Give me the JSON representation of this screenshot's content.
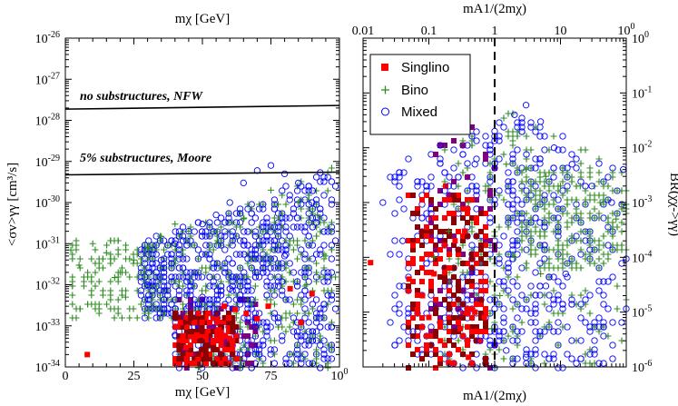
{
  "chart_data": [
    {
      "type": "scatter",
      "panel": "left",
      "title_top": "mχ [GeV]",
      "xlabel": "mχ [GeV]",
      "ylabel": "<σv>γγ [cm³/s]",
      "xlim": [
        0,
        100
      ],
      "ylim_log10": [
        -34,
        -26
      ],
      "x_ticks": [
        "0",
        "25",
        "50",
        "75",
        "100"
      ],
      "y_ticks": [
        "10-34",
        "10-33",
        "10-32",
        "10-31",
        "10-30",
        "10-29",
        "10-28",
        "10-27",
        "10-26"
      ],
      "reference_lines": [
        {
          "label": "no substructures, NFW",
          "y": 2.3e-28
        },
        {
          "label": "5% substructures, Moore",
          "y": 5.5e-30
        }
      ],
      "series": [
        {
          "name": "Singlino",
          "marker": "filled-square",
          "color": "#ff0000",
          "points": [
            [
              8,
              2e-34
            ],
            [
              42,
              1.2e-33
            ],
            [
              48,
              6e-34
            ],
            [
              52,
              2e-33
            ],
            [
              54,
              4e-34
            ],
            [
              56,
              8e-34
            ],
            [
              58,
              3e-33
            ],
            [
              62,
              2.5e-33
            ],
            [
              66,
              2e-33
            ],
            [
              70,
              1.5e-33
            ],
            [
              74,
              3e-33
            ],
            [
              82,
              8e-33
            ],
            [
              86,
              1.2e-33
            ],
            [
              90,
              6e-33
            ],
            [
              44,
              3e-34
            ],
            [
              60,
              5e-34
            ]
          ]
        },
        {
          "name": "Bino",
          "marker": "plus",
          "color": "#2e8b22",
          "points": [
            [
              2,
              7e-32
            ],
            [
              5,
              3e-32
            ],
            [
              10,
              1e-31
            ],
            [
              15,
              6e-32
            ],
            [
              20,
              2e-32
            ],
            [
              25,
              4e-32
            ],
            [
              30,
              8e-32
            ],
            [
              35,
              1.5e-31
            ],
            [
              40,
              3e-31
            ],
            [
              45,
              2e-31
            ],
            [
              55,
              1e-31
            ],
            [
              65,
              4e-31
            ],
            [
              75,
              2e-30
            ],
            [
              85,
              1e-30
            ],
            [
              92,
              5e-31
            ],
            [
              97,
              2e-31
            ],
            [
              95,
              5e-32
            ],
            [
              88,
              1e-32
            ],
            [
              22,
              5e-33
            ],
            [
              18,
              1.5e-32
            ]
          ]
        },
        {
          "name": "Mixed",
          "marker": "open-circle",
          "color": "#0000ff",
          "points": [
            [
              30,
              1e-32
            ],
            [
              35,
              4e-32
            ],
            [
              40,
              1e-31
            ],
            [
              45,
              2e-31
            ],
            [
              50,
              3e-31
            ],
            [
              55,
              5e-31
            ],
            [
              60,
              1e-30
            ],
            [
              65,
              3e-30
            ],
            [
              70,
              6e-30
            ],
            [
              75,
              8e-30
            ],
            [
              80,
              5e-30
            ],
            [
              85,
              3e-30
            ],
            [
              90,
              1e-30
            ],
            [
              45,
              3e-33
            ],
            [
              50,
              5e-33
            ],
            [
              55,
              2e-33
            ],
            [
              60,
              8e-33
            ],
            [
              70,
              2e-32
            ],
            [
              80,
              5e-32
            ],
            [
              40,
              6e-34
            ]
          ]
        }
      ]
    },
    {
      "type": "scatter",
      "panel": "right",
      "title_top": "mA1/(2mχ)",
      "xlabel": "mA1/(2mχ)",
      "ylabel": "BR(χχ->γγ)",
      "xlim_log10": [
        -2,
        2
      ],
      "ylim_log10": [
        -6,
        0
      ],
      "x_ticks": [
        "0.01",
        "0.1",
        "1",
        "10",
        "100"
      ],
      "y_ticks": [
        "10-6",
        "10-5",
        "10-4",
        "10-3",
        "10-2",
        "10-1",
        "10⁰"
      ],
      "reference_lines": [
        {
          "orientation": "vertical",
          "x": 1,
          "style": "dashed"
        }
      ],
      "legend": {
        "position": "top-left",
        "entries": [
          "Singlino",
          "Bino",
          "Mixed"
        ]
      },
      "series": [
        {
          "name": "Singlino",
          "marker": "filled-square",
          "color": "#ff0000",
          "points": [
            [
              0.013,
              8e-05
            ],
            [
              0.05,
              4e-05
            ],
            [
              0.08,
              2e-05
            ],
            [
              0.1,
              8e-06
            ],
            [
              0.15,
              3e-06
            ],
            [
              0.2,
              1.2e-06
            ],
            [
              0.12,
              5e-05
            ],
            [
              0.25,
              0.0002
            ],
            [
              0.3,
              5e-06
            ],
            [
              0.4,
              1.5e-06
            ],
            [
              0.5,
              1e-05
            ],
            [
              0.6,
              3e-06
            ],
            [
              0.7,
              8e-06
            ],
            [
              0.18,
              0.002
            ],
            [
              0.35,
              0.0003
            ]
          ]
        },
        {
          "name": "Bino",
          "marker": "plus",
          "color": "#2e8b22",
          "points": [
            [
              0.12,
              0.0001
            ],
            [
              0.2,
              0.0003
            ],
            [
              0.4,
              0.001
            ],
            [
              0.8,
              0.002
            ],
            [
              1.5,
              0.005
            ],
            [
              3,
              0.004
            ],
            [
              6,
              0.003
            ],
            [
              10,
              0.002
            ],
            [
              20,
              0.002
            ],
            [
              40,
              0.001
            ],
            [
              70,
              0.0005
            ],
            [
              2,
              0.0001
            ],
            [
              5,
              5e-05
            ],
            [
              1.2,
              2e-05
            ],
            [
              0.9,
              5e-06
            ]
          ]
        },
        {
          "name": "Mixed",
          "marker": "open-circle",
          "color": "#0000ff",
          "points": [
            [
              0.02,
              0.001
            ],
            [
              0.04,
              0.0002
            ],
            [
              0.1,
              0.0005
            ],
            [
              0.2,
              0.002
            ],
            [
              0.5,
              0.005
            ],
            [
              1,
              0.02
            ],
            [
              2,
              0.04
            ],
            [
              3,
              0.06
            ],
            [
              5,
              0.03
            ],
            [
              8,
              0.01
            ],
            [
              15,
              0.005
            ],
            [
              30,
              0.002
            ],
            [
              60,
              0.001
            ],
            [
              90,
              0.004
            ],
            [
              0.3,
              1e-05
            ],
            [
              0.6,
              3e-06
            ],
            [
              1.5,
              2e-06
            ],
            [
              3,
              1.5e-06
            ],
            [
              6,
              3e-05
            ],
            [
              12,
              5e-05
            ]
          ]
        }
      ]
    }
  ]
}
